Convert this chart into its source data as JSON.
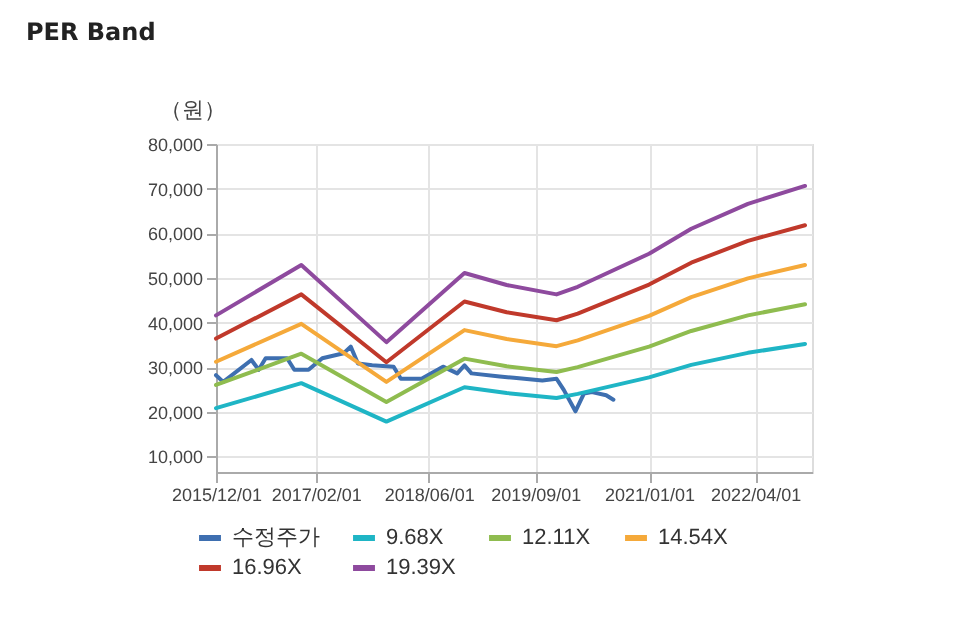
{
  "chart_data": {
    "type": "line",
    "title": "PER Band",
    "ylabel": "（원）",
    "x": [
      "2015-12-01",
      "2016-12-01",
      "2017-12-01",
      "2018-11-01",
      "2019-05-01",
      "2019-12-01",
      "2020-03-01",
      "2021-01-01",
      "2021-07-01",
      "2022-03-01",
      "2022-11-01"
    ],
    "series": [
      {
        "name": "수정주가",
        "color": "#3e6fb0",
        "x": [
          "2015-12-01",
          "2016-01-01",
          "2016-05-01",
          "2016-06-01",
          "2016-07-01",
          "2016-10-01",
          "2016-11-01",
          "2017-01-01",
          "2017-03-01",
          "2017-06-01",
          "2017-07-01",
          "2017-08-01",
          "2017-10-01",
          "2018-01-01",
          "2018-02-01",
          "2018-05-01",
          "2018-08-01",
          "2018-10-01",
          "2018-11-01",
          "2018-12-01",
          "2019-04-01",
          "2019-06-01",
          "2019-10-01",
          "2019-12-01",
          "2020-01-01",
          "2020-02-20",
          "2020-03-28",
          "2020-05-01",
          "2020-07-01",
          "2020-08-01"
        ],
        "values": [
          28200,
          26700,
          31600,
          29400,
          32000,
          32000,
          29400,
          29400,
          32000,
          33100,
          34600,
          30800,
          30400,
          30100,
          27400,
          27400,
          30100,
          28600,
          30400,
          28600,
          27900,
          27600,
          27000,
          27400,
          24900,
          20100,
          24100,
          24400,
          23700,
          22700
        ]
      },
      {
        "name": "9.68X",
        "color": "#1fb5c5",
        "values": [
          20800,
          26400,
          17800,
          25500,
          24200,
          23100,
          24000,
          27700,
          30500,
          33200,
          35200
        ]
      },
      {
        "name": "12.11X",
        "color": "#8fbc4f",
        "values": [
          26000,
          33000,
          22200,
          31900,
          30200,
          28900,
          30000,
          34600,
          38100,
          41600,
          44100
        ]
      },
      {
        "name": "14.54X",
        "color": "#f5a93a",
        "values": [
          31200,
          39700,
          26700,
          38300,
          36300,
          34700,
          36000,
          41500,
          45700,
          49900,
          52900
        ]
      },
      {
        "name": "16.96X",
        "color": "#c0392b",
        "values": [
          36400,
          46300,
          31100,
          44700,
          42300,
          40500,
          42000,
          48500,
          53400,
          58300,
          61800
        ]
      },
      {
        "name": "19.39X",
        "color": "#8e4a9e",
        "values": [
          41600,
          52900,
          35600,
          51100,
          48400,
          46300,
          48000,
          55400,
          61000,
          66600,
          70600
        ]
      }
    ],
    "xlim": [
      "2015-12-01",
      "2022-12-01"
    ],
    "xticks": [
      {
        "value": "2015-12-01",
        "label": "2015/12/01"
      },
      {
        "value": "2017-02-01",
        "label": "2017/02/01"
      },
      {
        "value": "2018-06-01",
        "label": "2018/06/01"
      },
      {
        "value": "2019-09-01",
        "label": "2019/09/01"
      },
      {
        "value": "2021-01-01",
        "label": "2021/01/01"
      },
      {
        "value": "2022-04-01",
        "label": "2022/04/01"
      }
    ],
    "ylim": [
      6500,
      80000
    ],
    "yticks": [
      {
        "value": 10000,
        "label": "10,000"
      },
      {
        "value": 20000,
        "label": "20,000"
      },
      {
        "value": 30000,
        "label": "30,000"
      },
      {
        "value": 40000,
        "label": "40,000"
      },
      {
        "value": 50000,
        "label": "50,000"
      },
      {
        "value": 60000,
        "label": "60,000"
      },
      {
        "value": 70000,
        "label": "70,000"
      },
      {
        "value": 80000,
        "label": "80,000"
      }
    ],
    "grid": true,
    "legend": "bottom"
  }
}
